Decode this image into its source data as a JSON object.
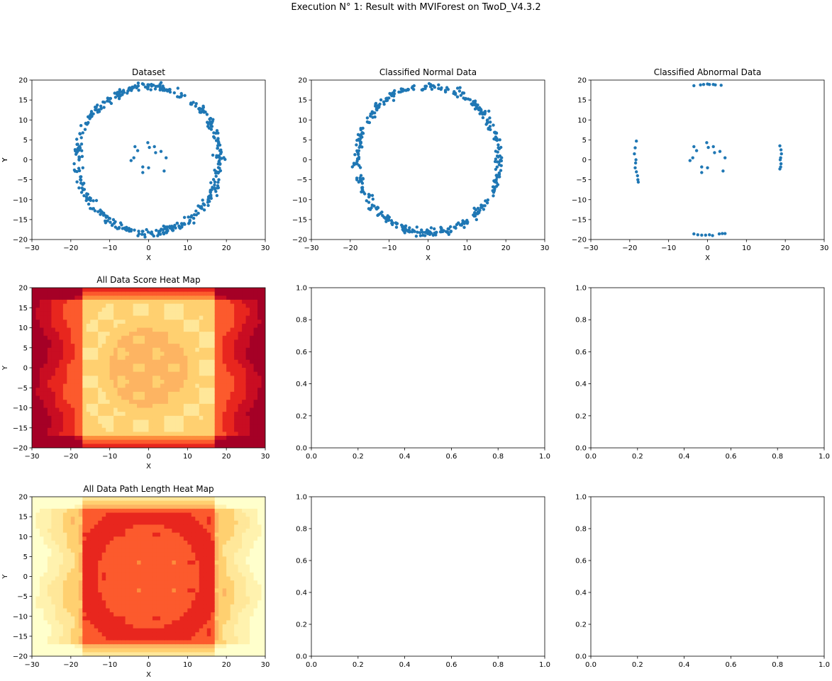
{
  "figure": {
    "suptitle": "Execution N° 1: Result with MVIForest on TwoD_V4.3.2"
  },
  "colors": {
    "points": "#1f77b4",
    "heat_levels": [
      "#ffffcc",
      "#fff2ae",
      "#ffe799",
      "#ffd070",
      "#fdb462",
      "#fd8d3c",
      "#fc5a2d",
      "#e8261e",
      "#c90d22",
      "#a50026"
    ]
  },
  "chart_data": [
    {
      "id": "dataset",
      "type": "scatter",
      "title": "Dataset",
      "xlabel": "X",
      "ylabel": "Y",
      "xlim": [
        -30,
        30
      ],
      "ylim": [
        -20,
        20
      ],
      "xticks": [
        "−30",
        "−20",
        "−10",
        "0",
        "10",
        "20",
        "30"
      ],
      "yticks": [
        "−20",
        "−15",
        "−10",
        "−5",
        "0",
        "5",
        "10",
        "15",
        "20"
      ],
      "ring": {
        "center": [
          0,
          0
        ],
        "radius": 18.3,
        "jitter": 1.0,
        "count": 420
      },
      "points": [
        [
          -3.5,
          3.3
        ],
        [
          -2.8,
          2.3
        ],
        [
          -0.2,
          4.3
        ],
        [
          0.2,
          3.1
        ],
        [
          1.5,
          3.3
        ],
        [
          1.8,
          1.8
        ],
        [
          3.2,
          2.1
        ],
        [
          4.5,
          0.5
        ],
        [
          -4.5,
          -0.2
        ],
        [
          -3.8,
          0.5
        ],
        [
          -1.5,
          -1.8
        ],
        [
          -1.5,
          -3.2
        ],
        [
          0.0,
          -2.0
        ],
        [
          4.0,
          -2.8
        ]
      ],
      "grid": false
    },
    {
      "id": "normal",
      "type": "scatter",
      "title": "Classified Normal Data",
      "xlabel": "X",
      "ylabel": "Y",
      "xlim": [
        -30,
        30
      ],
      "ylim": [
        -20,
        20
      ],
      "xticks": [
        "−30",
        "−20",
        "−10",
        "0",
        "10",
        "20",
        "30"
      ],
      "yticks": [
        "−20",
        "−15",
        "−10",
        "−5",
        "0",
        "5",
        "10",
        "15",
        "20"
      ],
      "ring": {
        "center": [
          0,
          0
        ],
        "radius": 18.3,
        "jitter": 1.0,
        "count": 400
      },
      "points": [],
      "grid": false
    },
    {
      "id": "abnormal",
      "type": "scatter",
      "title": "Classified Abnormal Data",
      "xlabel": "X",
      "ylabel": "Y",
      "xlim": [
        -30,
        30
      ],
      "ylim": [
        -20,
        20
      ],
      "xticks": [
        "−30",
        "−20",
        "−10",
        "0",
        "10",
        "20",
        "30"
      ],
      "yticks": [
        "−20",
        "−15",
        "−10",
        "−5",
        "0",
        "5",
        "10",
        "15",
        "20"
      ],
      "points": [
        [
          -3.5,
          3.3
        ],
        [
          -2.8,
          2.3
        ],
        [
          -0.2,
          4.3
        ],
        [
          0.2,
          3.1
        ],
        [
          1.5,
          3.3
        ],
        [
          1.8,
          1.8
        ],
        [
          3.2,
          2.1
        ],
        [
          4.5,
          0.5
        ],
        [
          -4.5,
          -0.2
        ],
        [
          -3.8,
          0.5
        ],
        [
          -1.5,
          -1.8
        ],
        [
          -1.5,
          -3.2
        ],
        [
          0.0,
          -2.0
        ],
        [
          4.0,
          -2.8
        ],
        [
          -18.3,
          4.7
        ],
        [
          -18.6,
          3.0
        ],
        [
          -18.8,
          1.5
        ],
        [
          -18.4,
          0.0
        ],
        [
          -18.5,
          -0.8
        ],
        [
          -18.6,
          -2.0
        ],
        [
          -18.3,
          -3.0
        ],
        [
          -18.0,
          -4.0
        ],
        [
          -17.9,
          -5.0
        ],
        [
          -17.8,
          -5.6
        ],
        [
          18.6,
          3.5
        ],
        [
          18.9,
          2.5
        ],
        [
          19.0,
          1.5
        ],
        [
          18.8,
          0.5
        ],
        [
          18.7,
          0.0
        ],
        [
          18.9,
          -1.0
        ],
        [
          18.8,
          -1.8
        ],
        [
          18.6,
          -2.3
        ],
        [
          -3.5,
          18.6
        ],
        [
          -1.8,
          18.8
        ],
        [
          -1.0,
          18.9
        ],
        [
          0.0,
          19.0
        ],
        [
          0.5,
          18.9
        ],
        [
          1.5,
          18.9
        ],
        [
          2.0,
          18.8
        ],
        [
          3.5,
          18.7
        ],
        [
          -3.5,
          -18.6
        ],
        [
          -2.5,
          -18.8
        ],
        [
          -1.5,
          -18.9
        ],
        [
          -0.5,
          -18.9
        ],
        [
          0.5,
          -18.8
        ],
        [
          1.3,
          -19.0
        ],
        [
          3.0,
          -18.6
        ],
        [
          3.8,
          -18.5
        ],
        [
          4.5,
          -18.5
        ]
      ],
      "grid": false
    },
    {
      "id": "score_heat",
      "type": "heatmap",
      "title": "All Data Score Heat Map",
      "xlabel": "X",
      "ylabel": "Y",
      "xlim": [
        -30,
        30
      ],
      "ylim": [
        -20,
        20
      ],
      "xticks": [
        "−30",
        "−20",
        "−10",
        "0",
        "10",
        "20",
        "30"
      ],
      "yticks": [
        "−20",
        "−15",
        "−10",
        "−5",
        "0",
        "5",
        "10",
        "15",
        "20"
      ],
      "field": "score",
      "grid": false
    },
    {
      "id": "empty_1",
      "type": "scatter",
      "title": "",
      "xlim": [
        0,
        1
      ],
      "ylim": [
        0,
        1
      ],
      "xticks": [
        "0.0",
        "0.2",
        "0.4",
        "0.6",
        "0.8",
        "1.0"
      ],
      "yticks": [
        "0.0",
        "0.2",
        "0.4",
        "0.6",
        "0.8",
        "1.0"
      ],
      "points": [],
      "grid": false
    },
    {
      "id": "empty_2",
      "type": "scatter",
      "title": "",
      "xlim": [
        0,
        1
      ],
      "ylim": [
        0,
        1
      ],
      "xticks": [
        "0.0",
        "0.2",
        "0.4",
        "0.6",
        "0.8",
        "1.0"
      ],
      "yticks": [
        "0.0",
        "0.2",
        "0.4",
        "0.6",
        "0.8",
        "1.0"
      ],
      "points": [],
      "grid": false
    },
    {
      "id": "path_heat",
      "type": "heatmap",
      "title": "All Data Path Length Heat Map",
      "xlabel": "X",
      "ylabel": "Y",
      "xlim": [
        -30,
        30
      ],
      "ylim": [
        -20,
        20
      ],
      "xticks": [
        "−30",
        "−20",
        "−10",
        "0",
        "10",
        "20",
        "30"
      ],
      "yticks": [
        "−20",
        "−15",
        "−10",
        "−5",
        "0",
        "5",
        "10",
        "15",
        "20"
      ],
      "field": "path_length",
      "grid": false
    },
    {
      "id": "empty_3",
      "type": "scatter",
      "title": "",
      "xlim": [
        0,
        1
      ],
      "ylim": [
        0,
        1
      ],
      "xticks": [
        "0.0",
        "0.2",
        "0.4",
        "0.6",
        "0.8",
        "1.0"
      ],
      "yticks": [
        "0.0",
        "0.2",
        "0.4",
        "0.6",
        "0.8",
        "1.0"
      ],
      "points": [],
      "grid": false
    },
    {
      "id": "empty_4",
      "type": "scatter",
      "title": "",
      "xlim": [
        0,
        1
      ],
      "ylim": [
        0,
        1
      ],
      "xticks": [
        "0.0",
        "0.2",
        "0.4",
        "0.6",
        "0.8",
        "1.0"
      ],
      "yticks": [
        "0.0",
        "0.2",
        "0.4",
        "0.6",
        "0.8",
        "1.0"
      ],
      "points": [],
      "grid": false
    }
  ]
}
